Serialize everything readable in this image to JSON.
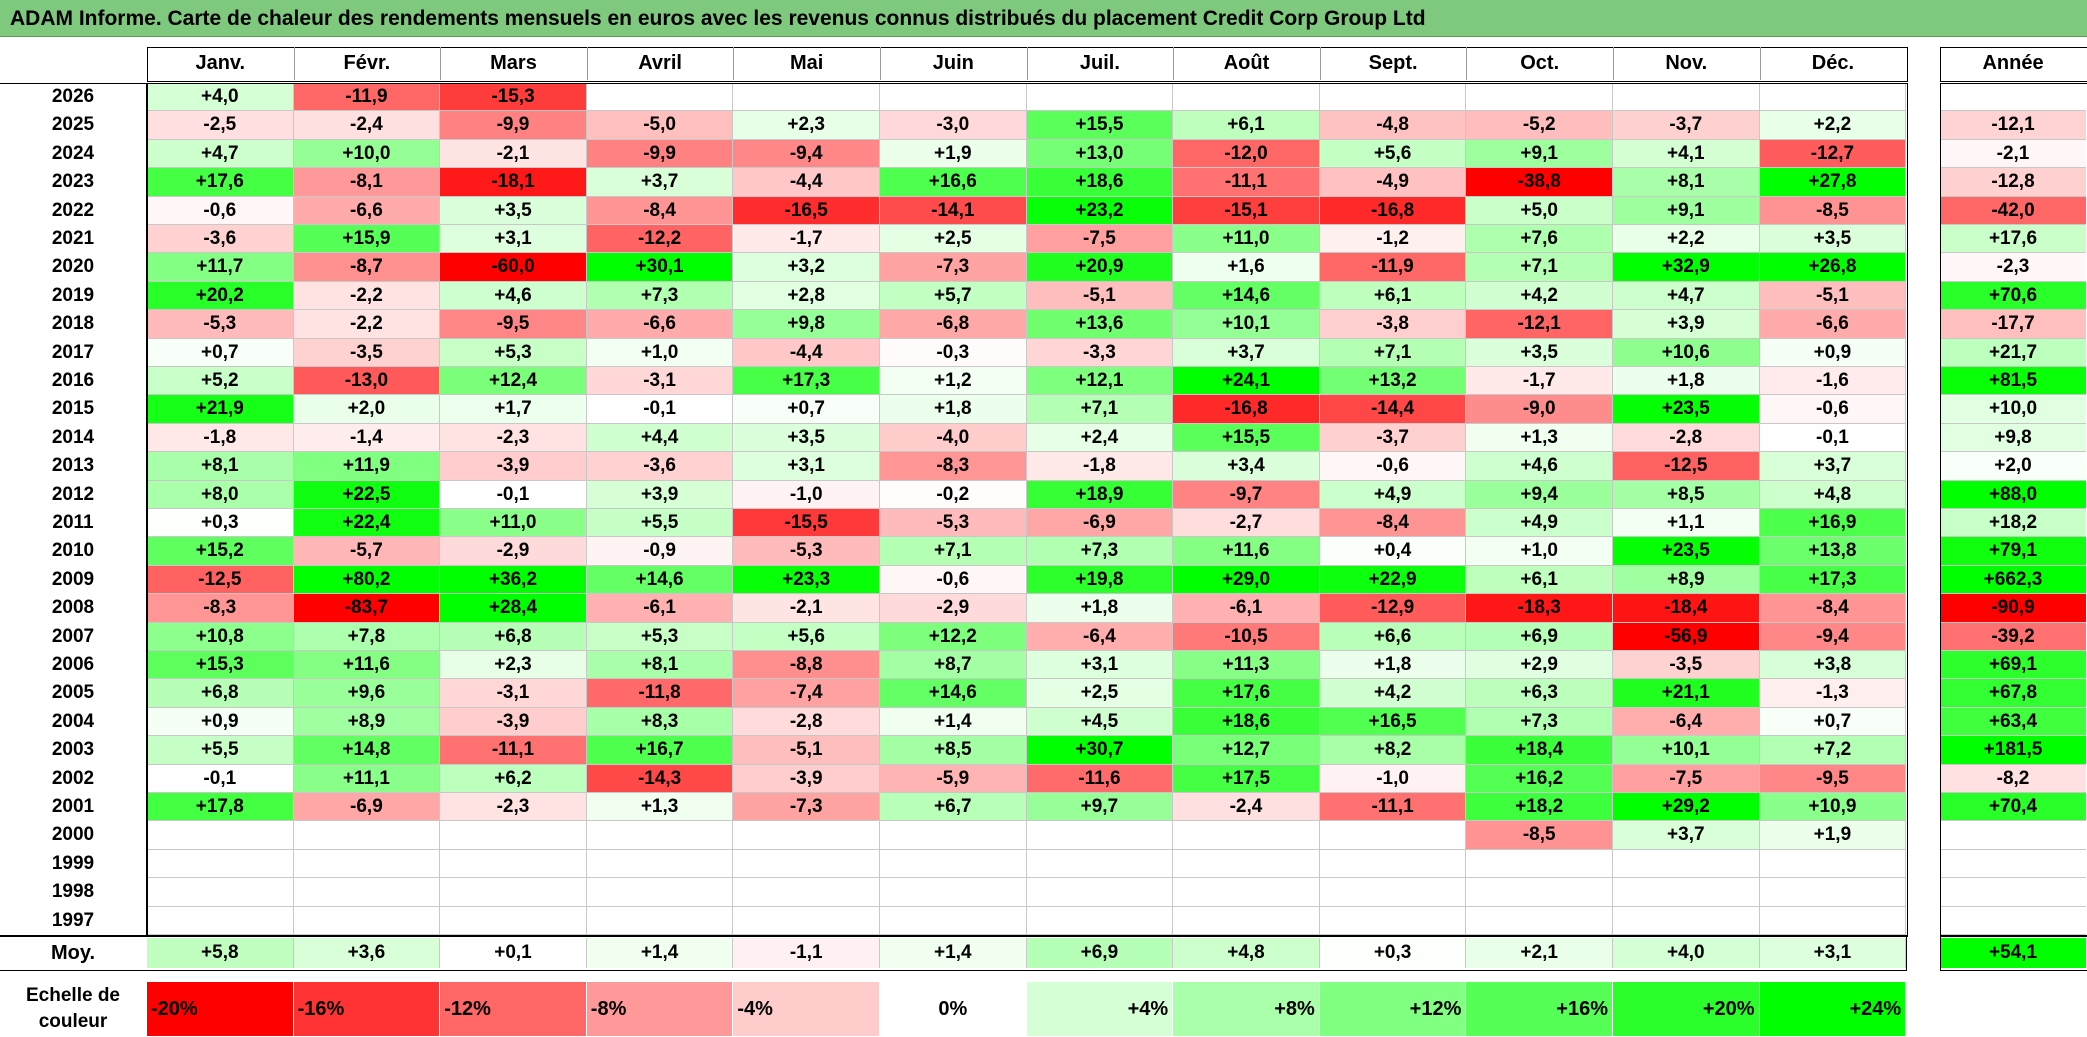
{
  "title": "ADAM Informe. Carte de chaleur des rendements mensuels en euros avec les revenus connus distribués du placement Credit Corp Group Ltd",
  "chart_data": {
    "type": "heatmap",
    "months": [
      "Janv.",
      "Févr.",
      "Mars",
      "Avril",
      "Mai",
      "Juin",
      "Juil.",
      "Août",
      "Sept.",
      "Oct.",
      "Nov.",
      "Déc."
    ],
    "year_header": "Année",
    "rows": [
      {
        "year": "2026",
        "values": [
          "+4,0",
          "-11,9",
          "-15,3",
          "",
          "",
          "",
          "",
          "",
          "",
          "",
          "",
          ""
        ],
        "annual": ""
      },
      {
        "year": "2025",
        "values": [
          "-2,5",
          "-2,4",
          "-9,9",
          "-5,0",
          "+2,3",
          "-3,0",
          "+15,5",
          "+6,1",
          "-4,8",
          "-5,2",
          "-3,7",
          "+2,2"
        ],
        "annual": "-12,1"
      },
      {
        "year": "2024",
        "values": [
          "+4,7",
          "+10,0",
          "-2,1",
          "-9,9",
          "-9,4",
          "+1,9",
          "+13,0",
          "-12,0",
          "+5,6",
          "+9,1",
          "+4,1",
          "-12,7"
        ],
        "annual": "-2,1"
      },
      {
        "year": "2023",
        "values": [
          "+17,6",
          "-8,1",
          "-18,1",
          "+3,7",
          "-4,4",
          "+16,6",
          "+18,6",
          "-11,1",
          "-4,9",
          "-38,8",
          "+8,1",
          "+27,8"
        ],
        "annual": "-12,8"
      },
      {
        "year": "2022",
        "values": [
          "-0,6",
          "-6,6",
          "+3,5",
          "-8,4",
          "-16,5",
          "-14,1",
          "+23,2",
          "-15,1",
          "-16,8",
          "+5,0",
          "+9,1",
          "-8,5"
        ],
        "annual": "-42,0"
      },
      {
        "year": "2021",
        "values": [
          "-3,6",
          "+15,9",
          "+3,1",
          "-12,2",
          "-1,7",
          "+2,5",
          "-7,5",
          "+11,0",
          "-1,2",
          "+7,6",
          "+2,2",
          "+3,5"
        ],
        "annual": "+17,6"
      },
      {
        "year": "2020",
        "values": [
          "+11,7",
          "-8,7",
          "-60,0",
          "+30,1",
          "+3,2",
          "-7,3",
          "+20,9",
          "+1,6",
          "-11,9",
          "+7,1",
          "+32,9",
          "+26,8"
        ],
        "annual": "-2,3"
      },
      {
        "year": "2019",
        "values": [
          "+20,2",
          "-2,2",
          "+4,6",
          "+7,3",
          "+2,8",
          "+5,7",
          "-5,1",
          "+14,6",
          "+6,1",
          "+4,2",
          "+4,7",
          "-5,1"
        ],
        "annual": "+70,6"
      },
      {
        "year": "2018",
        "values": [
          "-5,3",
          "-2,2",
          "-9,5",
          "-6,6",
          "+9,8",
          "-6,8",
          "+13,6",
          "+10,1",
          "-3,8",
          "-12,1",
          "+3,9",
          "-6,6"
        ],
        "annual": "-17,7"
      },
      {
        "year": "2017",
        "values": [
          "+0,7",
          "-3,5",
          "+5,3",
          "+1,0",
          "-4,4",
          "-0,3",
          "-3,3",
          "+3,7",
          "+7,1",
          "+3,5",
          "+10,6",
          "+0,9"
        ],
        "annual": "+21,7"
      },
      {
        "year": "2016",
        "values": [
          "+5,2",
          "-13,0",
          "+12,4",
          "-3,1",
          "+17,3",
          "+1,2",
          "+12,1",
          "+24,1",
          "+13,2",
          "-1,7",
          "+1,8",
          "-1,6"
        ],
        "annual": "+81,5"
      },
      {
        "year": "2015",
        "values": [
          "+21,9",
          "+2,0",
          "+1,7",
          "-0,1",
          "+0,7",
          "+1,8",
          "+7,1",
          "-16,8",
          "-14,4",
          "-9,0",
          "+23,5",
          "-0,6"
        ],
        "annual": "+10,0"
      },
      {
        "year": "2014",
        "values": [
          "-1,8",
          "-1,4",
          "-2,3",
          "+4,4",
          "+3,5",
          "-4,0",
          "+2,4",
          "+15,5",
          "-3,7",
          "+1,3",
          "-2,8",
          "-0,1"
        ],
        "annual": "+9,8"
      },
      {
        "year": "2013",
        "values": [
          "+8,1",
          "+11,9",
          "-3,9",
          "-3,6",
          "+3,1",
          "-8,3",
          "-1,8",
          "+3,4",
          "-0,6",
          "+4,6",
          "-12,5",
          "+3,7"
        ],
        "annual": "+2,0"
      },
      {
        "year": "2012",
        "values": [
          "+8,0",
          "+22,5",
          "-0,1",
          "+3,9",
          "-1,0",
          "-0,2",
          "+18,9",
          "-9,7",
          "+4,9",
          "+9,4",
          "+8,5",
          "+4,8"
        ],
        "annual": "+88,0"
      },
      {
        "year": "2011",
        "values": [
          "+0,3",
          "+22,4",
          "+11,0",
          "+5,5",
          "-15,5",
          "-5,3",
          "-6,9",
          "-2,7",
          "-8,4",
          "+4,9",
          "+1,1",
          "+16,9"
        ],
        "annual": "+18,2"
      },
      {
        "year": "2010",
        "values": [
          "+15,2",
          "-5,7",
          "-2,9",
          "-0,9",
          "-5,3",
          "+7,1",
          "+7,3",
          "+11,6",
          "+0,4",
          "+1,0",
          "+23,5",
          "+13,8"
        ],
        "annual": "+79,1"
      },
      {
        "year": "2009",
        "values": [
          "-12,5",
          "+80,2",
          "+36,2",
          "+14,6",
          "+23,3",
          "-0,6",
          "+19,8",
          "+29,0",
          "+22,9",
          "+6,1",
          "+8,9",
          "+17,3"
        ],
        "annual": "+662,3"
      },
      {
        "year": "2008",
        "values": [
          "-8,3",
          "-83,7",
          "+28,4",
          "-6,1",
          "-2,1",
          "-2,9",
          "+1,8",
          "-6,1",
          "-12,9",
          "-18,3",
          "-18,4",
          "-8,4"
        ],
        "annual": "-90,9"
      },
      {
        "year": "2007",
        "values": [
          "+10,8",
          "+7,8",
          "+6,8",
          "+5,3",
          "+5,6",
          "+12,2",
          "-6,4",
          "-10,5",
          "+6,6",
          "+6,9",
          "-56,9",
          "-9,4"
        ],
        "annual": "-39,2"
      },
      {
        "year": "2006",
        "values": [
          "+15,3",
          "+11,6",
          "+2,3",
          "+8,1",
          "-8,8",
          "+8,7",
          "+3,1",
          "+11,3",
          "+1,8",
          "+2,9",
          "-3,5",
          "+3,8"
        ],
        "annual": "+69,1"
      },
      {
        "year": "2005",
        "values": [
          "+6,8",
          "+9,6",
          "-3,1",
          "-11,8",
          "-7,4",
          "+14,6",
          "+2,5",
          "+17,6",
          "+4,2",
          "+6,3",
          "+21,1",
          "-1,3"
        ],
        "annual": "+67,8"
      },
      {
        "year": "2004",
        "values": [
          "+0,9",
          "+8,9",
          "-3,9",
          "+8,3",
          "-2,8",
          "+1,4",
          "+4,5",
          "+18,6",
          "+16,5",
          "+7,3",
          "-6,4",
          "+0,7"
        ],
        "annual": "+63,4"
      },
      {
        "year": "2003",
        "values": [
          "+5,5",
          "+14,8",
          "-11,1",
          "+16,7",
          "-5,1",
          "+8,5",
          "+30,7",
          "+12,7",
          "+8,2",
          "+18,4",
          "+10,1",
          "+7,2"
        ],
        "annual": "+181,5"
      },
      {
        "year": "2002",
        "values": [
          "-0,1",
          "+11,1",
          "+6,2",
          "-14,3",
          "-3,9",
          "-5,9",
          "-11,6",
          "+17,5",
          "-1,0",
          "+16,2",
          "-7,5",
          "-9,5"
        ],
        "annual": "-8,2"
      },
      {
        "year": "2001",
        "values": [
          "+17,8",
          "-6,9",
          "-2,3",
          "+1,3",
          "-7,3",
          "+6,7",
          "+9,7",
          "-2,4",
          "-11,1",
          "+18,2",
          "+29,2",
          "+10,9"
        ],
        "annual": "+70,4"
      },
      {
        "year": "2000",
        "values": [
          "",
          "",
          "",
          "",
          "",
          "",
          "",
          "",
          "",
          "-8,5",
          "+3,7",
          "+1,9"
        ],
        "annual": ""
      },
      {
        "year": "1999",
        "values": [
          "",
          "",
          "",
          "",
          "",
          "",
          "",
          "",
          "",
          "",
          "",
          ""
        ],
        "annual": ""
      },
      {
        "year": "1998",
        "values": [
          "",
          "",
          "",
          "",
          "",
          "",
          "",
          "",
          "",
          "",
          "",
          ""
        ],
        "annual": ""
      },
      {
        "year": "1997",
        "values": [
          "",
          "",
          "",
          "",
          "",
          "",
          "",
          "",
          "",
          "",
          "",
          ""
        ],
        "annual": ""
      }
    ],
    "average": {
      "label": "Moy.",
      "values": [
        "+5,8",
        "+3,6",
        "+0,1",
        "+1,4",
        "-1,1",
        "+1,4",
        "+6,9",
        "+4,8",
        "+0,3",
        "+2,1",
        "+4,0",
        "+3,1"
      ],
      "annual": "+54,1"
    },
    "scale": {
      "label_line1": "Echelle de",
      "label_line2": "couleur",
      "steps": [
        "-20%",
        "-16%",
        "-12%",
        "-8%",
        "-4%",
        "0%",
        "+4%",
        "+8%",
        "+12%",
        "+16%",
        "+20%",
        "+24%"
      ]
    },
    "colors": {
      "negative_max": "#ff0000",
      "neutral": "#ffffff",
      "positive_max": "#00ff00"
    }
  }
}
